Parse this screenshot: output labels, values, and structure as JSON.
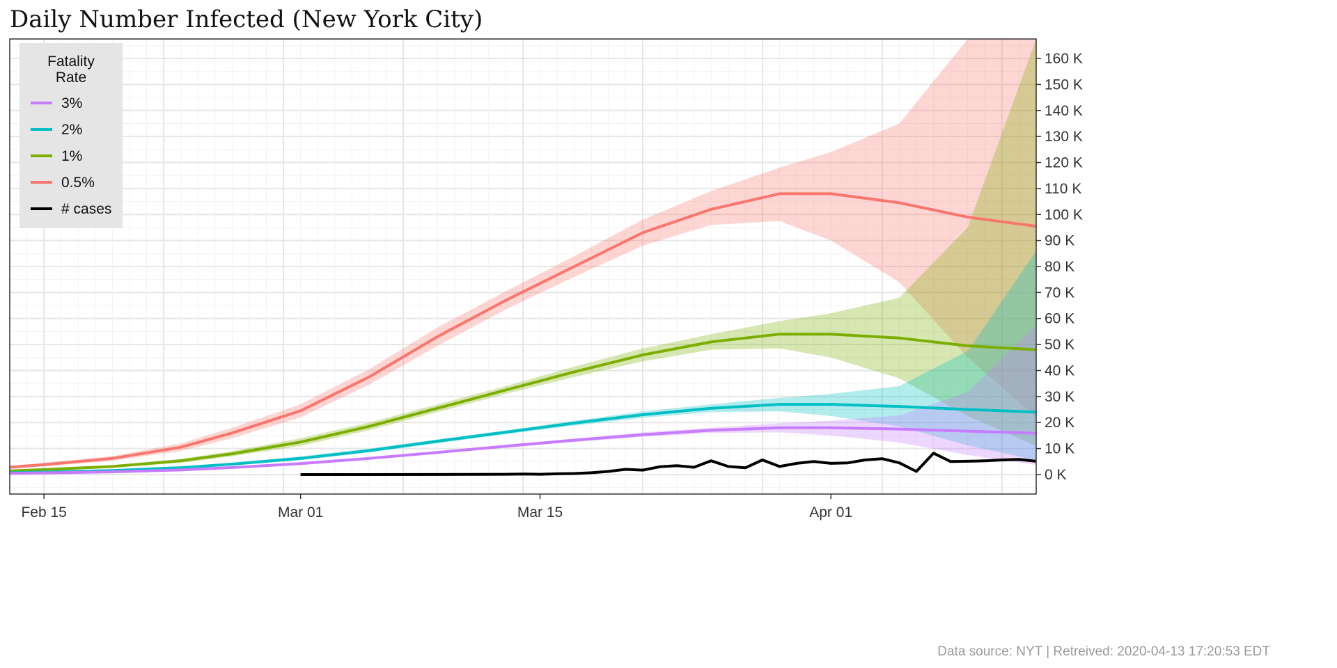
{
  "chart_data": {
    "type": "line",
    "title": "Daily Number Infected (New York City)",
    "xlabel": "",
    "ylabel": "",
    "x_ticks": [
      "Feb 15",
      "Mar 01",
      "Mar 15",
      "Apr 01"
    ],
    "y_ticks": [
      "0 K",
      "10 K",
      "20 K",
      "30 K",
      "40 K",
      "50 K",
      "60 K",
      "70 K",
      "80 K",
      "90 K",
      "100 K",
      "110 K",
      "120 K",
      "130 K",
      "140 K",
      "150 K",
      "160 K"
    ],
    "xlim": [
      "2020-02-13",
      "2020-04-13"
    ],
    "ylim": [
      -7500,
      167500
    ],
    "y_axis_side": "right",
    "grid": true,
    "legend": {
      "title": "Fatality\nRate",
      "position": "top-left",
      "entries": [
        {
          "label": "3%",
          "color": "#C77CFF"
        },
        {
          "label": "2%",
          "color": "#00BFC4"
        },
        {
          "label": "1%",
          "color": "#7CAE00"
        },
        {
          "label": "0.5%",
          "color": "#F8766D"
        },
        {
          "label": "# cases",
          "color": "#000000"
        }
      ]
    },
    "series": [
      {
        "name": "0.5%",
        "color": "#F8766D",
        "x": [
          "2020-02-13",
          "2020-02-15",
          "2020-02-19",
          "2020-02-23",
          "2020-02-26",
          "2020-03-01",
          "2020-03-05",
          "2020-03-09",
          "2020-03-13",
          "2020-03-17",
          "2020-03-21",
          "2020-03-25",
          "2020-03-29",
          "2020-04-01",
          "2020-04-05",
          "2020-04-09",
          "2020-04-13"
        ],
        "y": [
          2800,
          3800,
          6200,
          10500,
          16000,
          24500,
          37500,
          53000,
          67000,
          80000,
          93000,
          102000,
          108000,
          108000,
          104500,
          99000,
          95500
        ],
        "lower": [
          2200,
          3100,
          5300,
          9000,
          14000,
          22000,
          34500,
          49500,
          63500,
          76000,
          88000,
          96000,
          97500,
          90000,
          74000,
          45000,
          22000
        ],
        "upper": [
          3400,
          4500,
          7100,
          12000,
          18000,
          27000,
          40500,
          56500,
          70500,
          84000,
          98000,
          109000,
          118000,
          124000,
          135000,
          168000,
          168000
        ]
      },
      {
        "name": "1%",
        "color": "#7CAE00",
        "x": [
          "2020-02-13",
          "2020-02-15",
          "2020-02-19",
          "2020-02-23",
          "2020-02-26",
          "2020-03-01",
          "2020-03-05",
          "2020-03-09",
          "2020-03-13",
          "2020-03-17",
          "2020-03-21",
          "2020-03-25",
          "2020-03-29",
          "2020-04-01",
          "2020-04-05",
          "2020-04-09",
          "2020-04-13"
        ],
        "y": [
          1400,
          1900,
          3100,
          5300,
          8000,
          12500,
          18500,
          25500,
          32500,
          39500,
          46000,
          51000,
          54000,
          54000,
          52500,
          49500,
          48000
        ],
        "lower": [
          1100,
          1550,
          2650,
          4500,
          7000,
          11000,
          17000,
          24000,
          31000,
          37500,
          43500,
          48000,
          48500,
          45000,
          37000,
          22500,
          11000
        ],
        "upper": [
          1700,
          2250,
          3550,
          6000,
          9000,
          14000,
          20000,
          27000,
          34000,
          41500,
          48500,
          54000,
          59000,
          62000,
          68000,
          95000,
          168000
        ]
      },
      {
        "name": "2%",
        "color": "#00BFC4",
        "x": [
          "2020-02-13",
          "2020-02-15",
          "2020-02-19",
          "2020-02-23",
          "2020-02-26",
          "2020-03-01",
          "2020-03-05",
          "2020-03-09",
          "2020-03-13",
          "2020-03-17",
          "2020-03-21",
          "2020-03-25",
          "2020-03-29",
          "2020-04-01",
          "2020-04-05",
          "2020-04-09",
          "2020-04-13"
        ],
        "y": [
          700,
          950,
          1550,
          2650,
          4000,
          6200,
          9200,
          12800,
          16300,
          19800,
          23000,
          25500,
          27000,
          27000,
          26200,
          25000,
          24000
        ],
        "lower": [
          550,
          780,
          1320,
          2250,
          3500,
          5500,
          8500,
          12000,
          15500,
          18800,
          21800,
          24000,
          24300,
          22500,
          18500,
          11200,
          5500
        ],
        "upper": [
          850,
          1120,
          1780,
          3000,
          4500,
          7000,
          10000,
          13500,
          17000,
          20700,
          24300,
          27000,
          29500,
          31000,
          34000,
          47500,
          86000
        ]
      },
      {
        "name": "3%",
        "color": "#C77CFF",
        "x": [
          "2020-02-13",
          "2020-02-15",
          "2020-02-19",
          "2020-02-23",
          "2020-02-26",
          "2020-03-01",
          "2020-03-05",
          "2020-03-09",
          "2020-03-13",
          "2020-03-17",
          "2020-03-21",
          "2020-03-25",
          "2020-03-29",
          "2020-04-01",
          "2020-04-05",
          "2020-04-09",
          "2020-04-13"
        ],
        "y": [
          470,
          630,
          1030,
          1770,
          2700,
          4200,
          6200,
          8500,
          10900,
          13200,
          15300,
          17000,
          18000,
          18000,
          17500,
          16700,
          15900
        ],
        "lower": [
          370,
          520,
          880,
          1500,
          2300,
          3700,
          5700,
          8000,
          10300,
          12500,
          14500,
          16000,
          16200,
          15000,
          12300,
          7500,
          3700
        ],
        "upper": [
          570,
          740,
          1180,
          2000,
          3000,
          4700,
          6700,
          9000,
          11500,
          13800,
          16200,
          18000,
          19700,
          20700,
          22700,
          31700,
          57500
        ]
      },
      {
        "name": "# cases",
        "color": "#000000",
        "x": [
          "2020-03-01",
          "2020-03-05",
          "2020-03-09",
          "2020-03-13",
          "2020-03-14",
          "2020-03-15",
          "2020-03-16",
          "2020-03-17",
          "2020-03-18",
          "2020-03-19",
          "2020-03-20",
          "2020-03-21",
          "2020-03-22",
          "2020-03-23",
          "2020-03-24",
          "2020-03-25",
          "2020-03-26",
          "2020-03-27",
          "2020-03-28",
          "2020-03-29",
          "2020-03-30",
          "2020-03-31",
          "2020-04-01",
          "2020-04-02",
          "2020-04-03",
          "2020-04-04",
          "2020-04-05",
          "2020-04-06",
          "2020-04-07",
          "2020-04-08",
          "2020-04-09",
          "2020-04-10",
          "2020-04-11",
          "2020-04-12",
          "2020-04-13"
        ],
        "y": [
          0,
          0,
          10,
          100,
          200,
          100,
          300,
          400,
          700,
          1200,
          2000,
          1700,
          3000,
          3400,
          2800,
          5300,
          3100,
          2600,
          5600,
          3100,
          4300,
          5000,
          4300,
          4500,
          5600,
          6100,
          4500,
          1200,
          8200,
          5000,
          5100,
          5300,
          5600,
          5800,
          5100
        ]
      }
    ],
    "source_note": "Data source: NYT  |  Retreived: 2020-04-13 17:20:53 EDT"
  }
}
